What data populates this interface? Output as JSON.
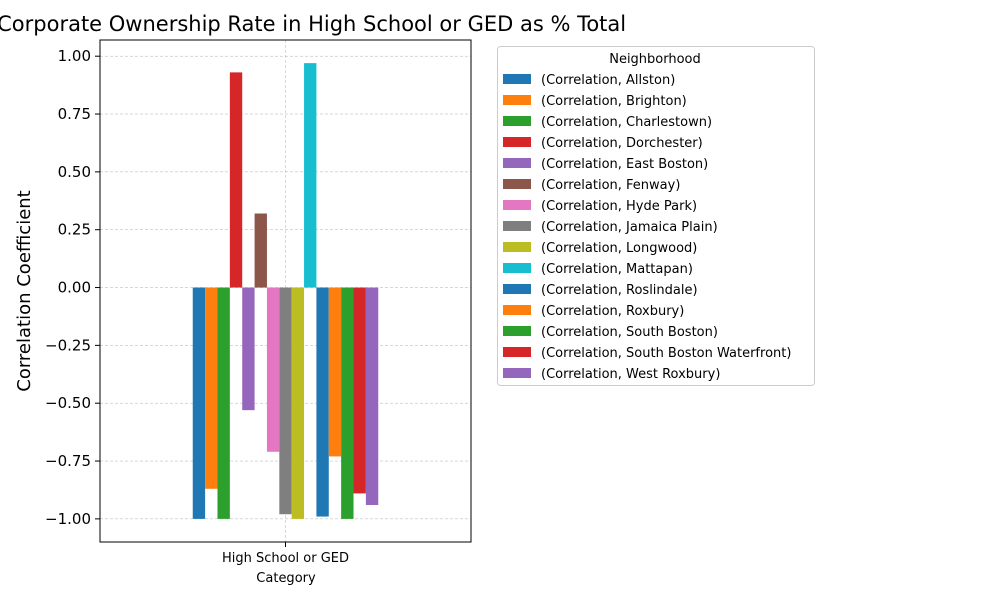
{
  "chart_data": {
    "type": "bar",
    "title": "with Corporate Ownership Rate in High School or GED as % Total",
    "xlabel": "Category",
    "ylabel": "Correlation Coefficient",
    "categories": [
      "High School or GED"
    ],
    "ylim": [
      -1.1,
      1.07
    ],
    "yticks": [
      "1.00",
      "0.75",
      "0.50",
      "0.25",
      "0.00",
      "−0.25",
      "−0.50",
      "−0.75",
      "−1.00"
    ],
    "ytick_values": [
      1.0,
      0.75,
      0.5,
      0.25,
      0.0,
      -0.25,
      -0.5,
      -0.75,
      -1.0
    ],
    "grid": true,
    "legend_title": "Neighborhood",
    "legend_position": "outside-right",
    "series": [
      {
        "name": "(Correlation, Allston)",
        "values": [
          -1.0
        ],
        "color": "#1f77b4"
      },
      {
        "name": "(Correlation, Brighton)",
        "values": [
          -0.87
        ],
        "color": "#ff7f0e"
      },
      {
        "name": "(Correlation, Charlestown)",
        "values": [
          -1.0
        ],
        "color": "#2ca02c"
      },
      {
        "name": "(Correlation, Dorchester)",
        "values": [
          0.93
        ],
        "color": "#d62728"
      },
      {
        "name": "(Correlation, East Boston)",
        "values": [
          -0.53
        ],
        "color": "#9467bd"
      },
      {
        "name": "(Correlation, Fenway)",
        "values": [
          0.32
        ],
        "color": "#8c564b"
      },
      {
        "name": "(Correlation, Hyde Park)",
        "values": [
          -0.71
        ],
        "color": "#e377c2"
      },
      {
        "name": "(Correlation, Jamaica Plain)",
        "values": [
          -0.98
        ],
        "color": "#7f7f7f"
      },
      {
        "name": "(Correlation, Longwood)",
        "values": [
          -1.0
        ],
        "color": "#bcbd22"
      },
      {
        "name": "(Correlation, Mattapan)",
        "values": [
          0.97
        ],
        "color": "#17becf"
      },
      {
        "name": "(Correlation, Roslindale)",
        "values": [
          -0.99
        ],
        "color": "#1f77b4"
      },
      {
        "name": "(Correlation, Roxbury)",
        "values": [
          -0.73
        ],
        "color": "#ff7f0e"
      },
      {
        "name": "(Correlation, South Boston)",
        "values": [
          -1.0
        ],
        "color": "#2ca02c"
      },
      {
        "name": "(Correlation, South Boston Waterfront)",
        "values": [
          -0.89
        ],
        "color": "#d62728"
      },
      {
        "name": "(Correlation, West Roxbury)",
        "values": [
          -0.94
        ],
        "color": "#9467bd"
      }
    ]
  }
}
